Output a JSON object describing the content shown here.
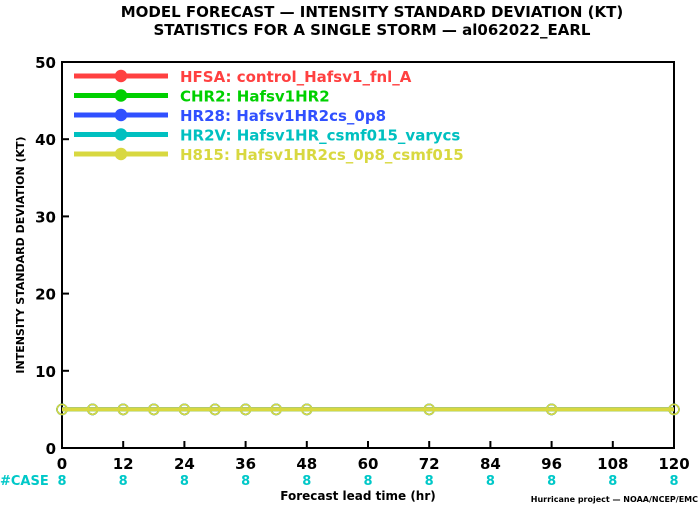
{
  "chart_data": {
    "type": "line",
    "title": "MODEL FORECAST — INTENSITY STANDARD DEVIATION (KT)",
    "subtitle": "STATISTICS FOR A SINGLE STORM — al062022_EARL",
    "xlabel": "Forecast lead time (hr)",
    "ylabel": "INTENSITY STANDARD DEVIATION (KT)",
    "xlim": [
      0,
      120
    ],
    "ylim": [
      0,
      50
    ],
    "x_ticks": [
      0,
      12,
      24,
      36,
      48,
      60,
      72,
      84,
      96,
      108,
      120
    ],
    "y_ticks": [
      0,
      10,
      20,
      30,
      40,
      50
    ],
    "grid": false,
    "legend_position": "top-left",
    "x": [
      0,
      6,
      12,
      18,
      24,
      30,
      36,
      42,
      48,
      72,
      96,
      120
    ],
    "series": [
      {
        "name": "HFSA: control_Hafsv1_fnl_A",
        "color": "#ff4040",
        "values": [
          5,
          5,
          5,
          5,
          5,
          5,
          5,
          5,
          5,
          5,
          5,
          5
        ]
      },
      {
        "name": "CHR2: Hafsv1HR2",
        "color": "#00d000",
        "values": [
          5,
          5,
          5,
          5,
          5,
          5,
          5,
          5,
          5,
          5,
          5,
          5
        ]
      },
      {
        "name": "HR28: Hafsv1HR2cs_0p8",
        "color": "#3050ff",
        "values": [
          5,
          5,
          5,
          5,
          5,
          5,
          5,
          5,
          5,
          5,
          5,
          5
        ]
      },
      {
        "name": "HR2V: Hafsv1HR_csmf015_varycs",
        "color": "#00c0c0",
        "values": [
          5,
          5,
          5,
          5,
          5,
          5,
          5,
          5,
          5,
          5,
          5,
          5
        ]
      },
      {
        "name": "H815: Hafsv1HR2cs_0p8_csmf015",
        "color": "#d8d840",
        "values": [
          5,
          5,
          5,
          5,
          5,
          5,
          5,
          5,
          5,
          5,
          5,
          5
        ]
      }
    ],
    "cases": {
      "label": "#CASE",
      "x": [
        0,
        12,
        24,
        36,
        48,
        60,
        72,
        84,
        96,
        108,
        120
      ],
      "values": [
        8,
        8,
        8,
        8,
        8,
        8,
        8,
        8,
        8,
        8,
        8
      ]
    },
    "credit": "Hurricane project — NOAA/NCEP/EMC"
  }
}
